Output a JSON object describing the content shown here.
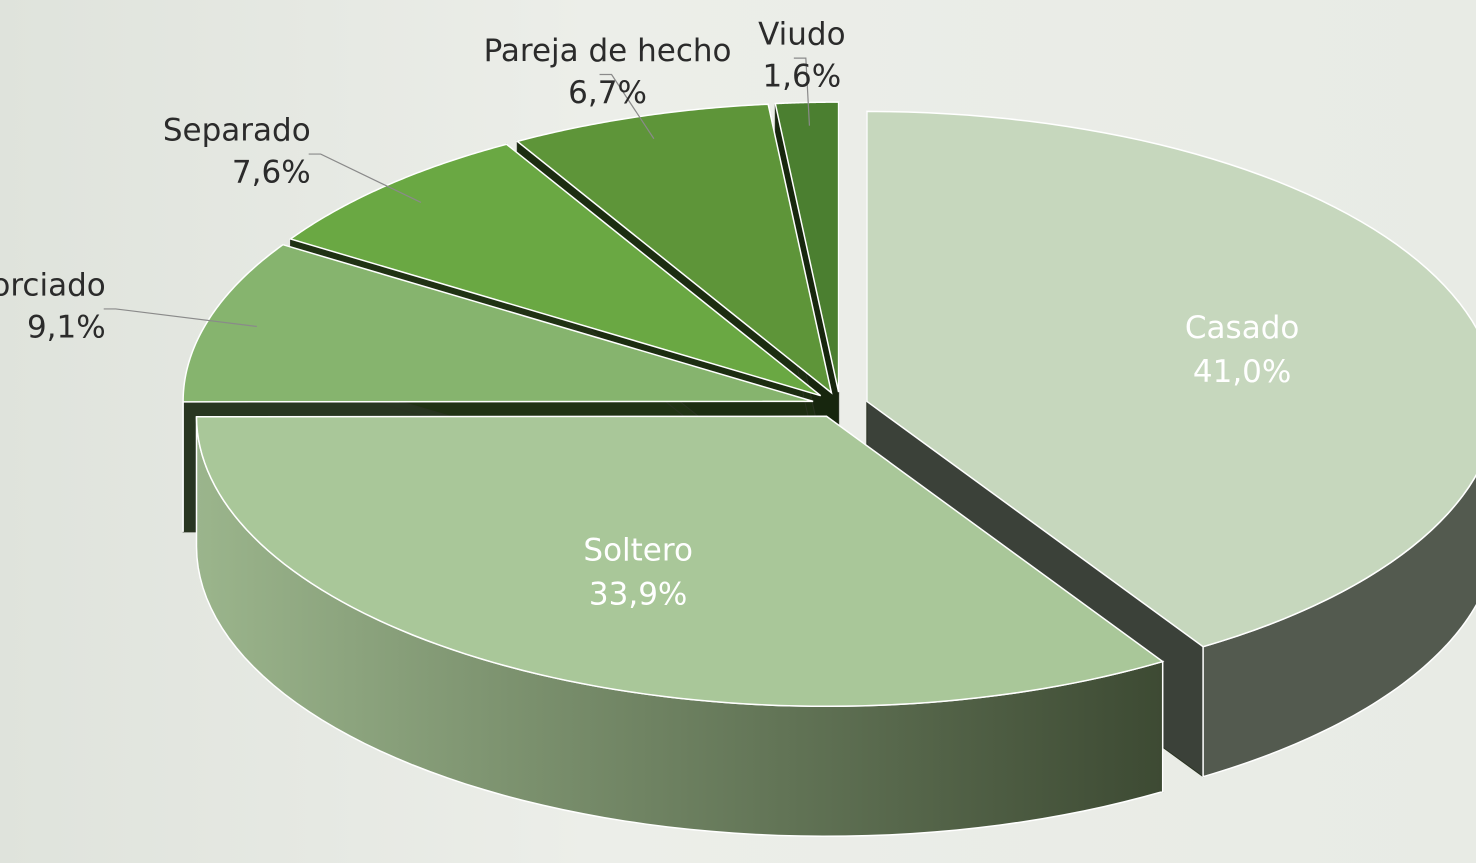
{
  "chart_data": {
    "type": "pie3d",
    "categories": [
      "Casado",
      "Soltero",
      "Divorciado",
      "Separado",
      "Pareja de hecho",
      "Viudo"
    ],
    "values": [
      41.0,
      33.9,
      9.1,
      7.6,
      6.7,
      1.6
    ],
    "value_labels": [
      "41,0%",
      "33,9%",
      "9,1%",
      "7,6%",
      "6,7%",
      "1,6%"
    ],
    "colors": [
      "#c6d7bd",
      "#a9c799",
      "#86b46e",
      "#6aa843",
      "#5e9539",
      "#4b7f30"
    ]
  }
}
